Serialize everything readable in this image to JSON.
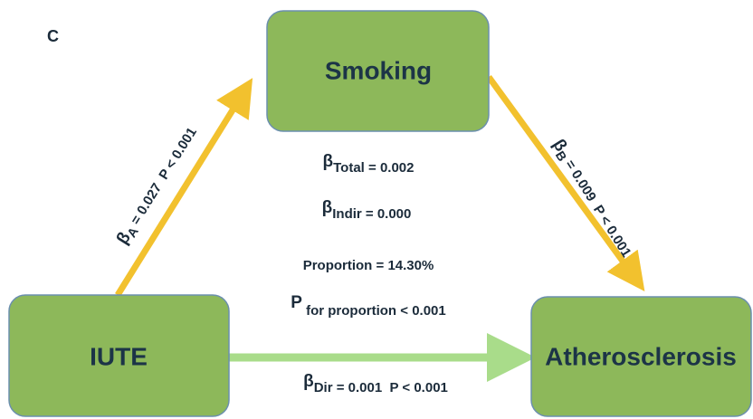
{
  "panel_label": "C",
  "nodes": [
    {
      "label": "Smoking"
    },
    {
      "label": "IUTE"
    },
    {
      "label": "Atherosclerosis"
    }
  ],
  "edges": [
    {
      "symbol": "β",
      "subscript": "A",
      "text": " = 0.027  P < 0.001"
    },
    {
      "symbol": "β",
      "subscript": "B",
      "text": " = 0.009  P < 0.001"
    },
    {
      "symbol": "β",
      "subscript": "Dir",
      "text": " = 0.001  P < 0.001"
    }
  ],
  "stats": {
    "total": {
      "symbol": "β",
      "subscript": "Total",
      "text": " = 0.002"
    },
    "indirect": {
      "symbol": "β",
      "subscript": "Indir",
      "text": " = 0.000"
    },
    "proportion": "Proportion = 14.30%",
    "p_proportion": {
      "symbol": "P",
      "subscript": " for proportion",
      "text": " < 0.001"
    }
  }
}
